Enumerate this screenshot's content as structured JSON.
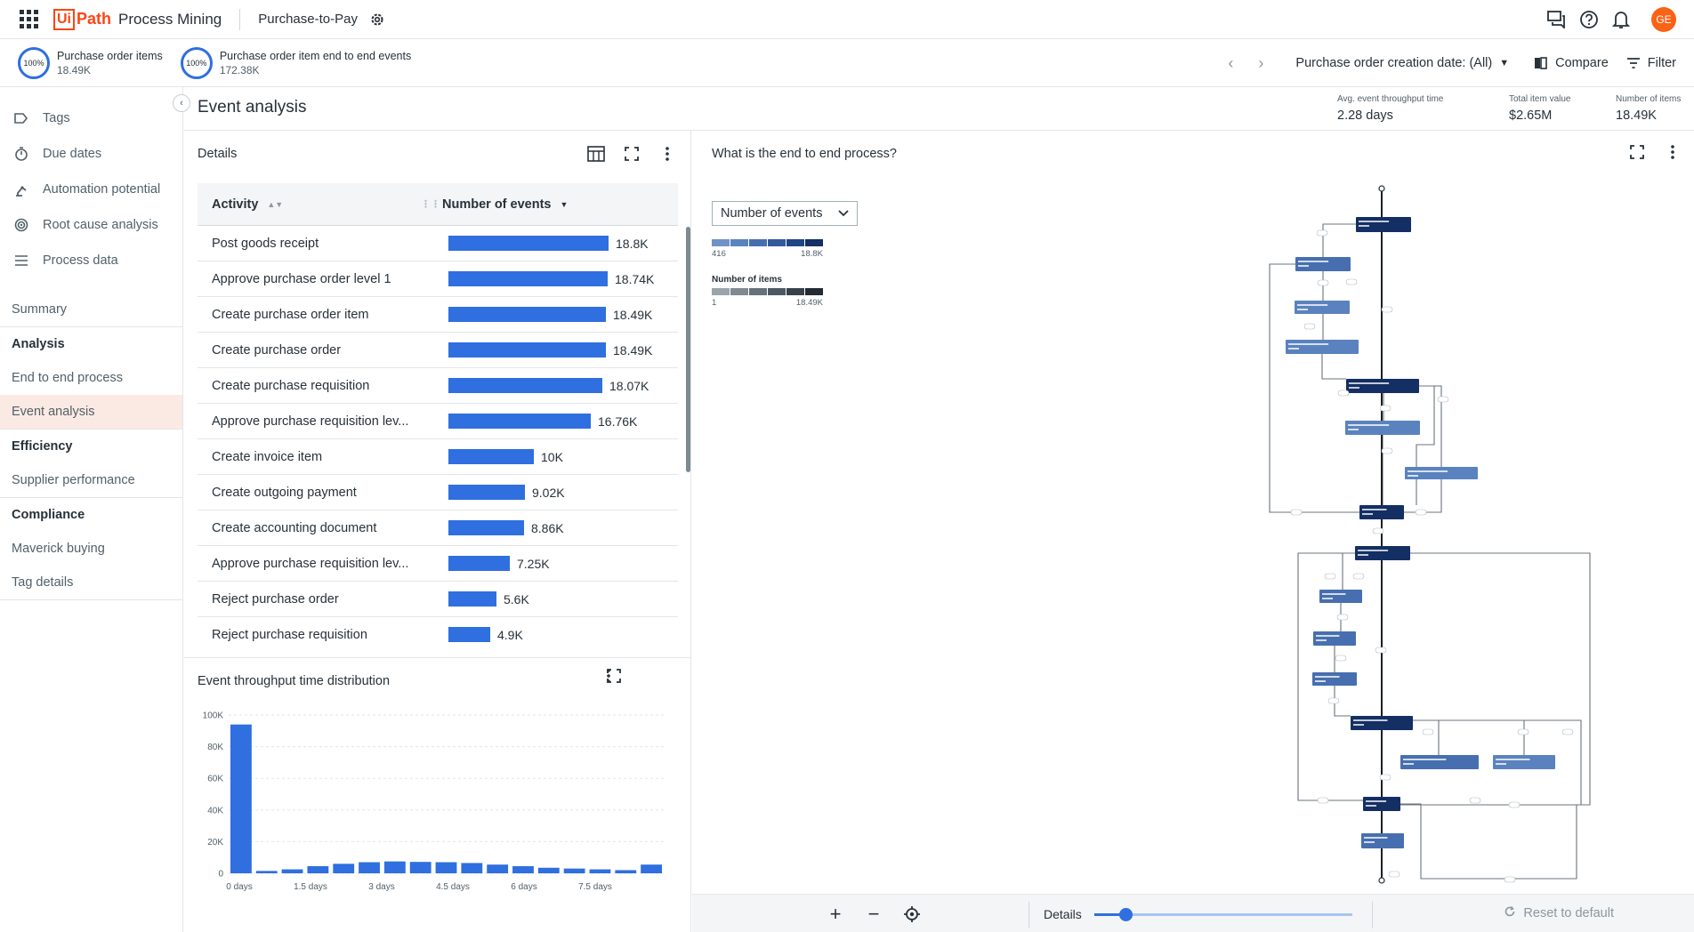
{
  "topbar": {
    "logo_ui": "Ui",
    "logo_path": "Path",
    "product": "Process Mining",
    "app_title": "Purchase-to-Pay",
    "avatar_initials": "GE"
  },
  "kpis": [
    {
      "ring": "100%",
      "label": "Purchase order items",
      "value": "18.49K"
    },
    {
      "ring": "100%",
      "label": "Purchase order item end to end events",
      "value": "172.38K"
    }
  ],
  "toolbar": {
    "date_filter": "Purchase order creation date: (All)",
    "compare_label": "Compare",
    "filter_label": "Filter"
  },
  "sidebar": {
    "tools": [
      "Tags",
      "Due dates",
      "Automation potential",
      "Root cause analysis",
      "Process data"
    ],
    "summary": "Summary",
    "groups": [
      {
        "header": "Analysis",
        "items": [
          "End to end process",
          "Event analysis"
        ]
      },
      {
        "header": "Efficiency",
        "items": [
          "Supplier performance"
        ]
      },
      {
        "header": "Compliance",
        "items": [
          "Maverick buying",
          "Tag details"
        ]
      }
    ],
    "active_item": "Event analysis"
  },
  "page": {
    "title": "Event analysis",
    "kpis": [
      {
        "label": "Avg. event throughput time",
        "value": "2.28 days"
      },
      {
        "label": "Total item value",
        "value": "$2.65M"
      },
      {
        "label": "Number of items",
        "value": "18.49K"
      }
    ]
  },
  "details": {
    "title": "Details",
    "col_activity": "Activity",
    "col_events": "Number of events",
    "max_value": 18800,
    "rows": [
      {
        "activity": "Post goods receipt",
        "value": 18800,
        "label": "18.8K"
      },
      {
        "activity": "Approve purchase order level 1",
        "value": 18740,
        "label": "18.74K"
      },
      {
        "activity": "Create purchase order item",
        "value": 18490,
        "label": "18.49K"
      },
      {
        "activity": "Create purchase order",
        "value": 18490,
        "label": "18.49K"
      },
      {
        "activity": "Create purchase requisition",
        "value": 18070,
        "label": "18.07K"
      },
      {
        "activity": "Approve purchase requisition lev...",
        "value": 16760,
        "label": "16.76K"
      },
      {
        "activity": "Create invoice item",
        "value": 10000,
        "label": "10K"
      },
      {
        "activity": "Create outgoing payment",
        "value": 9020,
        "label": "9.02K"
      },
      {
        "activity": "Create accounting document",
        "value": 8860,
        "label": "8.86K"
      },
      {
        "activity": "Approve purchase requisition lev...",
        "value": 7250,
        "label": "7.25K"
      },
      {
        "activity": "Reject purchase order",
        "value": 5600,
        "label": "5.6K"
      },
      {
        "activity": "Reject purchase requisition",
        "value": 4900,
        "label": "4.9K"
      }
    ]
  },
  "histogram": {
    "title": "Event throughput time distribution",
    "y_ticks": [
      "100K",
      "80K",
      "60K",
      "40K",
      "20K",
      "0"
    ],
    "x_ticks": [
      "0 days",
      "1.5 days",
      "3 days",
      "4.5 days",
      "6 days",
      "7.5 days"
    ]
  },
  "chart_data": {
    "type": "bar",
    "title": "Event throughput time distribution",
    "xlabel": "",
    "ylabel": "",
    "ylim": [
      0,
      100000
    ],
    "x_ticks": [
      "0 days",
      "1.5 days",
      "3 days",
      "4.5 days",
      "6 days",
      "7.5 days"
    ],
    "values": [
      94000,
      1500,
      2500,
      4500,
      6000,
      7000,
      7500,
      7200,
      7000,
      6500,
      5500,
      4500,
      3500,
      3000,
      2500,
      2000,
      5500
    ]
  },
  "graph": {
    "title": "What is the end to end process?",
    "metric": "Number of events",
    "legend_min": "416",
    "legend_max": "18.8K",
    "legend2_title": "Number of items",
    "legend2_min": "1",
    "legend2_max": "18.49K",
    "details_label": "Details",
    "slider_value": 0.12,
    "reset_label": "Reset to default"
  }
}
